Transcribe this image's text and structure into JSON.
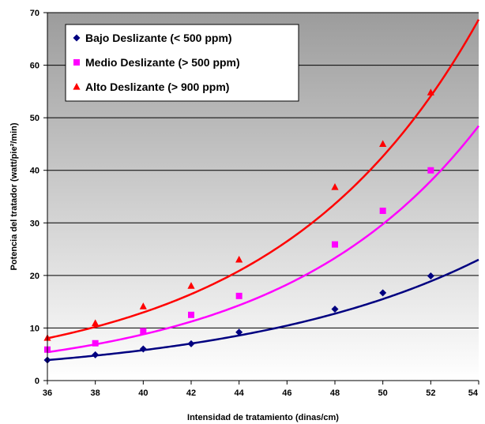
{
  "chart_data": {
    "type": "scatter",
    "title": "",
    "xlabel": "Intensidad de tratamiento (dinas/cm)",
    "ylabel": "Potencia del tratador (watt/pie²/min)",
    "xlim": [
      36,
      54
    ],
    "ylim": [
      0,
      70
    ],
    "x_ticks": [
      "36",
      "38",
      "40",
      "42",
      "44",
      "46",
      "48",
      "50",
      "52",
      "54"
    ],
    "y_ticks": [
      "0",
      "10",
      "20",
      "30",
      "40",
      "50",
      "60",
      "70"
    ],
    "x_tick_values": [
      36,
      38,
      40,
      42,
      44,
      46,
      48,
      50,
      52,
      54
    ],
    "y_tick_values": [
      0,
      10,
      20,
      30,
      40,
      50,
      60,
      70
    ],
    "grid": "horizontal",
    "legend_position": "top-left",
    "trendline": "exponential",
    "series": [
      {
        "name": "Bajo Deslizante (< 500 ppm)",
        "color": "#000080",
        "marker": "diamond",
        "x": [
          36,
          38,
          40,
          42,
          44,
          48,
          50,
          52
        ],
        "y": [
          3.9,
          4.9,
          6.0,
          7.0,
          9.2,
          13.6,
          16.7,
          19.9
        ],
        "fit": {
          "a": 3.9,
          "b": 0.0986
        }
      },
      {
        "name": "Medio Deslizante (> 500 ppm)",
        "color": "#ff00ff",
        "marker": "square",
        "x": [
          36,
          38,
          40,
          42,
          44,
          48,
          50,
          52
        ],
        "y": [
          5.9,
          7.1,
          9.4,
          12.5,
          16.1,
          25.9,
          32.3,
          40.0
        ],
        "fit": {
          "a": 5.4,
          "b": 0.1219
        }
      },
      {
        "name": "Alto Deslizante (> 900 ppm)",
        "color": "#ff0000",
        "marker": "triangle",
        "x": [
          36,
          38,
          40,
          42,
          44,
          48,
          50,
          52
        ],
        "y": [
          8.1,
          10.9,
          14.1,
          18.0,
          23.0,
          36.8,
          45.0,
          54.8
        ],
        "fit": {
          "a": 8.05,
          "b": 0.1191
        }
      }
    ]
  }
}
